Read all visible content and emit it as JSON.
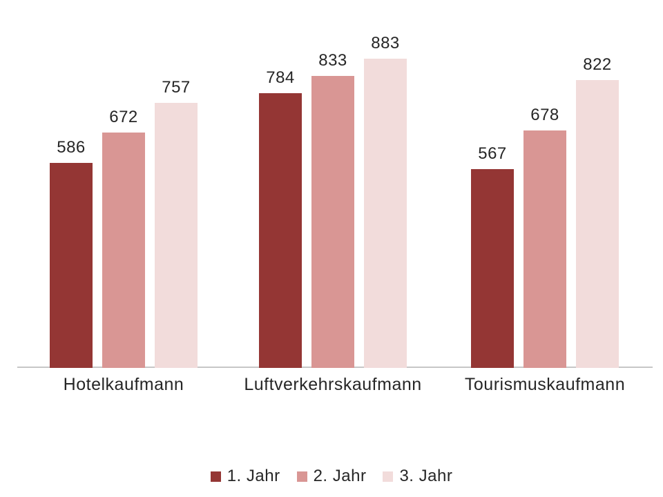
{
  "chart_data": {
    "type": "bar",
    "title": "",
    "xlabel": "",
    "ylabel": "",
    "categories": [
      "Hotelkaufmann",
      "Luftverkehrskaufmann",
      "Tourismuskaufmann"
    ],
    "series": [
      {
        "name": "1. Jahr",
        "color": "#943634",
        "values": [
          586,
          784,
          567
        ]
      },
      {
        "name": "2. Jahr",
        "color": "#D99694",
        "values": [
          672,
          833,
          678
        ]
      },
      {
        "name": "3. Jahr",
        "color": "#F2DCDB",
        "values": [
          757,
          883,
          822
        ]
      }
    ],
    "ylim": [
      0,
      950
    ],
    "grid": false,
    "data_labels": true,
    "legend_position": "bottom",
    "axis_line_color": "#C6C6C6",
    "text_color": "#262626",
    "background_color": "#FFFFFF"
  }
}
